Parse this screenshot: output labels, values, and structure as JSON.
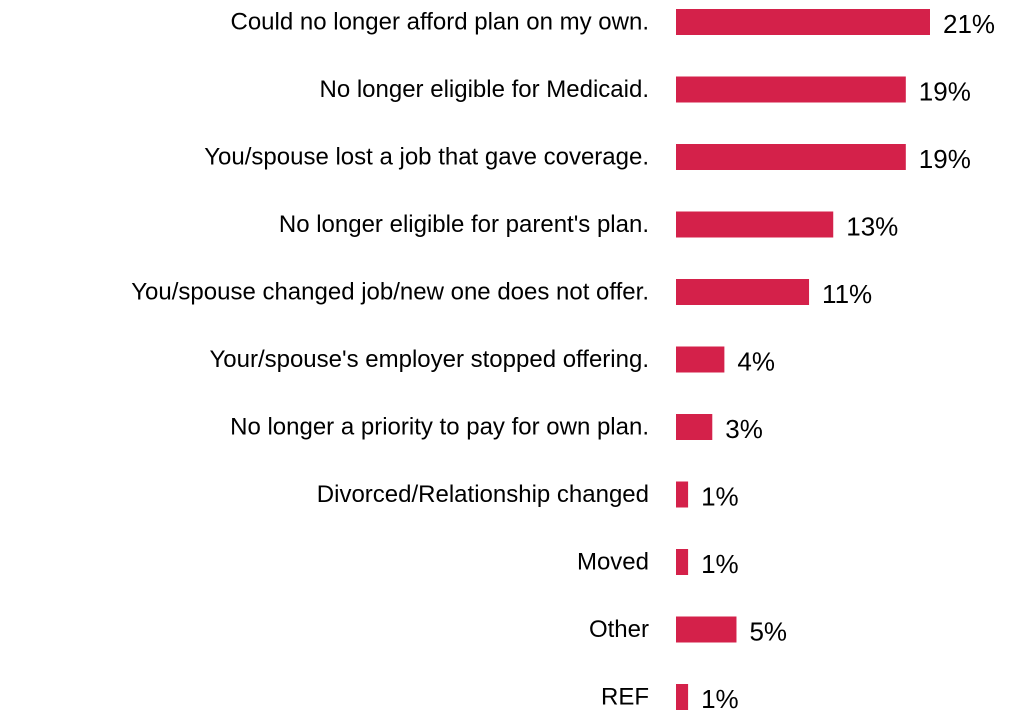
{
  "chart_data": {
    "type": "bar",
    "orientation": "horizontal",
    "categories": [
      "Could no longer afford plan on my own.",
      "No longer eligible for Medicaid.",
      "You/spouse lost a job that gave coverage.",
      "No longer eligible for parent's plan.",
      "You/spouse changed job/new one does not offer.",
      "Your/spouse's employer stopped offering.",
      "No longer a priority to pay for own plan.",
      "Divorced/Relationship changed",
      "Moved",
      "Other",
      "REF"
    ],
    "values": [
      21,
      19,
      19,
      13,
      11,
      4,
      3,
      1,
      1,
      5,
      1
    ],
    "value_labels": [
      "21%",
      "19%",
      "19%",
      "13%",
      "11%",
      "4%",
      "3%",
      "1%",
      "1%",
      "5%",
      "1%"
    ],
    "unit": "%",
    "xlim": [
      0,
      21
    ],
    "grid": false,
    "axes_visible": false,
    "legend": "none",
    "bar_color": "#d4214a"
  }
}
